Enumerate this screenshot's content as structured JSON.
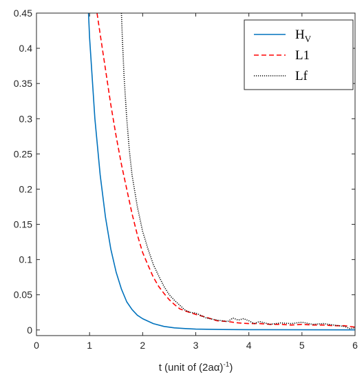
{
  "chart_data": {
    "type": "line",
    "title": "",
    "xlabel": "t (unit of (2aα)",
    "xlabel_sup": "-1",
    "xlabel_close": ")",
    "ylabel": "",
    "xlim": [
      0,
      6
    ],
    "ylim": [
      -0.008,
      0.45
    ],
    "x_ticks": [
      0,
      1,
      2,
      3,
      4,
      5,
      6
    ],
    "x_tick_labels": [
      "0",
      "1",
      "2",
      "3",
      "4",
      "5",
      "6"
    ],
    "y_ticks": [
      0,
      0.05,
      0.1,
      0.15,
      0.2,
      0.25,
      0.3,
      0.35,
      0.4,
      0.45
    ],
    "y_tick_labels": [
      "0",
      "0.05",
      "0.1",
      "0.15",
      "0.2",
      "0.25",
      "0.3",
      "0.35",
      "0.4",
      "0.45"
    ],
    "grid": false,
    "legend_position": "top-right",
    "series": [
      {
        "name": "H",
        "name_sub": "V",
        "color": "#0072BD",
        "style": "solid",
        "x": [
          0.98,
          1.0,
          1.1,
          1.2,
          1.3,
          1.4,
          1.5,
          1.6,
          1.7,
          1.8,
          1.9,
          2.0,
          2.2,
          2.4,
          2.6,
          2.8,
          3.0,
          3.5,
          4.0,
          5.0,
          6.0
        ],
        "y": [
          0.45,
          0.415,
          0.3,
          0.22,
          0.16,
          0.115,
          0.082,
          0.058,
          0.04,
          0.029,
          0.021,
          0.016,
          0.009,
          0.005,
          0.003,
          0.002,
          0.0012,
          0.0006,
          0.0004,
          0.0002,
          0.0001
        ]
      },
      {
        "name": "L1",
        "color": "#FF0000",
        "style": "dashed",
        "x": [
          1.14,
          1.2,
          1.3,
          1.4,
          1.5,
          1.6,
          1.7,
          1.8,
          1.9,
          2.0,
          2.1,
          2.2,
          2.3,
          2.4,
          2.5,
          2.6,
          2.7,
          2.8,
          3.0,
          3.2,
          3.4,
          3.6,
          3.8,
          4.0,
          4.2,
          4.4,
          4.6,
          4.8,
          5.0,
          5.2,
          5.4,
          5.6,
          5.8,
          6.0
        ],
        "y": [
          0.45,
          0.42,
          0.37,
          0.32,
          0.275,
          0.235,
          0.2,
          0.165,
          0.135,
          0.11,
          0.092,
          0.075,
          0.062,
          0.052,
          0.043,
          0.036,
          0.03,
          0.027,
          0.022,
          0.018,
          0.013,
          0.012,
          0.01,
          0.009,
          0.009,
          0.008,
          0.008,
          0.007,
          0.008,
          0.007,
          0.007,
          0.006,
          0.006,
          0.004
        ]
      },
      {
        "name": "Lf",
        "color": "#000000",
        "style": "dotted",
        "x": [
          1.6,
          1.62,
          1.65,
          1.7,
          1.75,
          1.8,
          1.9,
          2.0,
          2.1,
          2.2,
          2.3,
          2.4,
          2.5,
          2.6,
          2.7,
          2.8,
          2.9,
          3.0,
          3.2,
          3.4,
          3.6,
          3.7,
          3.8,
          3.9,
          4.0,
          4.1,
          4.2,
          4.4,
          4.6,
          4.8,
          5.0,
          5.2,
          5.4,
          5.6,
          5.8,
          5.9,
          6.0
        ],
        "y": [
          0.45,
          0.41,
          0.36,
          0.3,
          0.255,
          0.22,
          0.175,
          0.14,
          0.115,
          0.093,
          0.077,
          0.062,
          0.05,
          0.042,
          0.035,
          0.028,
          0.025,
          0.024,
          0.017,
          0.014,
          0.012,
          0.017,
          0.014,
          0.016,
          0.013,
          0.009,
          0.012,
          0.008,
          0.01,
          0.009,
          0.011,
          0.008,
          0.009,
          0.007,
          0.005,
          0.002,
          0.003
        ]
      }
    ]
  }
}
